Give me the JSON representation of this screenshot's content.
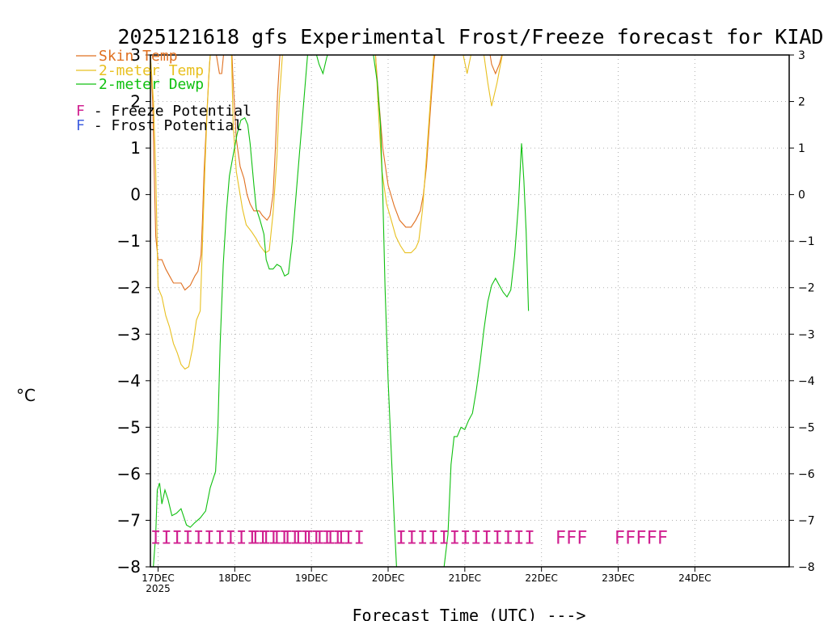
{
  "chart_data": {
    "type": "line",
    "title": "2025121618 gfs Experimental Frost/Freeze forecast for KIAD",
    "xlabel": "Forecast Time (UTC) --->",
    "ylabel": "°C",
    "ylim": [
      -8,
      3
    ],
    "xlim": [
      -0.1,
      8.23
    ],
    "yticks_left": [
      "−8",
      "−7",
      "−6",
      "−5",
      "−4",
      "−3",
      "−2",
      "−1",
      "0",
      "1",
      "2",
      "3"
    ],
    "yticks_right": [
      "−8",
      "−7",
      "−6",
      "−5",
      "−4",
      "−3",
      "−2",
      "−1",
      "0",
      "1",
      "2",
      "3"
    ],
    "ytick_values": [
      -8,
      -7,
      -6,
      -5,
      -4,
      -3,
      -2,
      -1,
      0,
      1,
      2,
      3
    ],
    "xticks": [
      {
        "label": "17DEC",
        "sub": "2025",
        "day": 0
      },
      {
        "label": "18DEC",
        "sub": "",
        "day": 1
      },
      {
        "label": "19DEC",
        "sub": "",
        "day": 2
      },
      {
        "label": "20DEC",
        "sub": "",
        "day": 3
      },
      {
        "label": "21DEC",
        "sub": "",
        "day": 4
      },
      {
        "label": "22DEC",
        "sub": "",
        "day": 5
      },
      {
        "label": "23DEC",
        "sub": "",
        "day": 6
      },
      {
        "label": "24DEC",
        "sub": "",
        "day": 7
      }
    ],
    "grid": true,
    "legend": {
      "position": "top-left",
      "entries": [
        {
          "label": "Skin Temp",
          "color": "#e07020"
        },
        {
          "label": "2-meter Temp",
          "color": "#e8c020"
        },
        {
          "label": "2-meter Dewp",
          "color": "#10c010"
        }
      ],
      "notes": [
        {
          "letter": "F",
          "text": " - Freeze Potential",
          "color": "#d02090"
        },
        {
          "letter": "F",
          "text": " - Frost Potential",
          "color": "#4060e0"
        }
      ]
    },
    "series": [
      {
        "name": "Skin Temp",
        "color": "#e07020",
        "points": [
          [
            -0.1,
            3.0
          ],
          [
            -0.07,
            2.0
          ],
          [
            -0.05,
            0.5
          ],
          [
            -0.03,
            -0.9
          ],
          [
            0.0,
            -1.4
          ],
          [
            0.05,
            -1.4
          ],
          [
            0.1,
            -1.6
          ],
          [
            0.15,
            -1.75
          ],
          [
            0.2,
            -1.9
          ],
          [
            0.3,
            -1.9
          ],
          [
            0.35,
            -2.05
          ],
          [
            0.42,
            -1.95
          ],
          [
            0.48,
            -1.75
          ],
          [
            0.52,
            -1.65
          ],
          [
            0.56,
            -1.3
          ],
          [
            0.58,
            -0.5
          ],
          [
            0.6,
            0.5
          ],
          [
            0.63,
            1.5
          ],
          [
            0.66,
            2.5
          ],
          [
            0.68,
            3.0
          ],
          [
            0.72,
            3.2
          ],
          [
            0.76,
            3.0
          ],
          [
            0.8,
            2.6
          ],
          [
            0.83,
            2.6
          ],
          [
            0.86,
            3.1
          ],
          [
            0.9,
            3.5
          ],
          [
            0.95,
            3.5
          ],
          [
            0.98,
            2.4
          ],
          [
            1.02,
            1.2
          ],
          [
            1.07,
            0.6
          ],
          [
            1.12,
            0.35
          ],
          [
            1.16,
            0.0
          ],
          [
            1.2,
            -0.2
          ],
          [
            1.25,
            -0.35
          ],
          [
            1.32,
            -0.35
          ],
          [
            1.36,
            -0.45
          ],
          [
            1.42,
            -0.55
          ],
          [
            1.46,
            -0.45
          ],
          [
            1.5,
            0.0
          ],
          [
            1.53,
            1.0
          ],
          [
            1.56,
            2.2
          ],
          [
            1.6,
            3.3
          ],
          [
            1.68,
            3.5
          ],
          [
            2.7,
            3.5
          ],
          [
            2.83,
            3.1
          ],
          [
            2.88,
            2.0
          ],
          [
            2.93,
            1.0
          ],
          [
            3.0,
            0.2
          ],
          [
            3.08,
            -0.25
          ],
          [
            3.15,
            -0.55
          ],
          [
            3.23,
            -0.7
          ],
          [
            3.3,
            -0.7
          ],
          [
            3.36,
            -0.55
          ],
          [
            3.42,
            -0.35
          ],
          [
            3.46,
            0.0
          ],
          [
            3.5,
            0.6
          ],
          [
            3.55,
            1.8
          ],
          [
            3.6,
            2.9
          ],
          [
            3.66,
            3.5
          ],
          [
            3.9,
            3.5
          ],
          [
            4.0,
            3.3
          ],
          [
            4.1,
            3.1
          ],
          [
            4.18,
            3.3
          ],
          [
            4.3,
            3.3
          ],
          [
            4.35,
            2.8
          ],
          [
            4.4,
            2.6
          ],
          [
            4.45,
            2.8
          ],
          [
            4.5,
            3.1
          ],
          [
            4.55,
            3.3
          ]
        ]
      },
      {
        "name": "2-meter Temp",
        "color": "#e8c020",
        "points": [
          [
            -0.1,
            3.0
          ],
          [
            -0.06,
            2.0
          ],
          [
            -0.03,
            0.5
          ],
          [
            0.0,
            -2.0
          ],
          [
            0.05,
            -2.2
          ],
          [
            0.1,
            -2.6
          ],
          [
            0.15,
            -2.85
          ],
          [
            0.2,
            -3.2
          ],
          [
            0.25,
            -3.4
          ],
          [
            0.3,
            -3.65
          ],
          [
            0.35,
            -3.75
          ],
          [
            0.4,
            -3.7
          ],
          [
            0.45,
            -3.3
          ],
          [
            0.5,
            -2.7
          ],
          [
            0.55,
            -2.5
          ],
          [
            0.58,
            -1.0
          ],
          [
            0.61,
            0.5
          ],
          [
            0.64,
            1.8
          ],
          [
            0.67,
            2.8
          ],
          [
            0.7,
            3.3
          ],
          [
            0.75,
            3.5
          ],
          [
            0.95,
            3.5
          ],
          [
            0.98,
            1.5
          ],
          [
            1.02,
            0.5
          ],
          [
            1.06,
            0.1
          ],
          [
            1.1,
            -0.3
          ],
          [
            1.15,
            -0.65
          ],
          [
            1.22,
            -0.8
          ],
          [
            1.28,
            -0.95
          ],
          [
            1.33,
            -1.1
          ],
          [
            1.4,
            -1.25
          ],
          [
            1.45,
            -1.2
          ],
          [
            1.5,
            -0.4
          ],
          [
            1.55,
            0.8
          ],
          [
            1.58,
            2.0
          ],
          [
            1.63,
            3.2
          ],
          [
            1.7,
            3.5
          ],
          [
            2.7,
            3.5
          ],
          [
            2.83,
            3.2
          ],
          [
            2.88,
            1.6
          ],
          [
            2.92,
            0.5
          ],
          [
            2.98,
            -0.2
          ],
          [
            3.05,
            -0.6
          ],
          [
            3.1,
            -0.9
          ],
          [
            3.16,
            -1.1
          ],
          [
            3.22,
            -1.25
          ],
          [
            3.3,
            -1.25
          ],
          [
            3.36,
            -1.15
          ],
          [
            3.4,
            -1.0
          ],
          [
            3.45,
            -0.3
          ],
          [
            3.5,
            0.8
          ],
          [
            3.55,
            2.0
          ],
          [
            3.6,
            3.1
          ],
          [
            3.66,
            3.5
          ],
          [
            3.9,
            3.5
          ],
          [
            3.98,
            3.0
          ],
          [
            4.03,
            2.6
          ],
          [
            4.08,
            3.0
          ],
          [
            4.15,
            3.3
          ],
          [
            4.25,
            3.0
          ],
          [
            4.3,
            2.4
          ],
          [
            4.35,
            1.9
          ],
          [
            4.42,
            2.4
          ],
          [
            4.5,
            3.1
          ],
          [
            4.55,
            3.3
          ]
        ]
      },
      {
        "name": "2-meter Dewp",
        "color": "#10c010",
        "points": [
          [
            -0.07,
            -8.2
          ],
          [
            -0.03,
            -7.3
          ],
          [
            -0.01,
            -6.35
          ],
          [
            0.02,
            -6.2
          ],
          [
            0.05,
            -6.65
          ],
          [
            0.09,
            -6.35
          ],
          [
            0.13,
            -6.55
          ],
          [
            0.18,
            -6.9
          ],
          [
            0.24,
            -6.85
          ],
          [
            0.3,
            -6.75
          ],
          [
            0.37,
            -7.1
          ],
          [
            0.42,
            -7.15
          ],
          [
            0.48,
            -7.05
          ],
          [
            0.55,
            -6.95
          ],
          [
            0.62,
            -6.8
          ],
          [
            0.68,
            -6.3
          ],
          [
            0.75,
            -5.95
          ],
          [
            0.78,
            -5.0
          ],
          [
            0.81,
            -3.2
          ],
          [
            0.85,
            -1.5
          ],
          [
            0.89,
            -0.4
          ],
          [
            0.93,
            0.4
          ],
          [
            0.98,
            0.85
          ],
          [
            1.03,
            1.3
          ],
          [
            1.08,
            1.6
          ],
          [
            1.13,
            1.65
          ],
          [
            1.17,
            1.5
          ],
          [
            1.2,
            1.1
          ],
          [
            1.25,
            0.2
          ],
          [
            1.28,
            -0.3
          ],
          [
            1.33,
            -0.55
          ],
          [
            1.38,
            -0.85
          ],
          [
            1.41,
            -1.4
          ],
          [
            1.45,
            -1.6
          ],
          [
            1.5,
            -1.6
          ],
          [
            1.55,
            -1.5
          ],
          [
            1.6,
            -1.55
          ],
          [
            1.65,
            -1.75
          ],
          [
            1.7,
            -1.7
          ],
          [
            1.75,
            -1.0
          ],
          [
            1.8,
            0.0
          ],
          [
            1.85,
            1.0
          ],
          [
            1.9,
            2.0
          ],
          [
            1.95,
            3.0
          ],
          [
            2.0,
            3.3
          ],
          [
            2.05,
            3.1
          ],
          [
            2.1,
            2.8
          ],
          [
            2.15,
            2.6
          ],
          [
            2.2,
            2.95
          ],
          [
            2.25,
            3.2
          ],
          [
            2.4,
            3.4
          ],
          [
            2.7,
            3.4
          ],
          [
            2.8,
            3.1
          ],
          [
            2.86,
            2.4
          ],
          [
            2.9,
            1.5
          ],
          [
            2.93,
            0.0
          ],
          [
            2.96,
            -2.0
          ],
          [
            3.0,
            -4.0
          ],
          [
            3.04,
            -5.5
          ],
          [
            3.08,
            -7.0
          ],
          [
            3.11,
            -8.0
          ],
          [
            3.12,
            -8.2
          ],
          [
            3.72,
            -8.2
          ],
          [
            3.73,
            -8.0
          ],
          [
            3.78,
            -7.3
          ],
          [
            3.82,
            -5.8
          ],
          [
            3.86,
            -5.2
          ],
          [
            3.9,
            -5.2
          ],
          [
            3.95,
            -5.0
          ],
          [
            4.0,
            -5.05
          ],
          [
            4.05,
            -4.85
          ],
          [
            4.1,
            -4.7
          ],
          [
            4.15,
            -4.2
          ],
          [
            4.2,
            -3.6
          ],
          [
            4.25,
            -2.9
          ],
          [
            4.3,
            -2.3
          ],
          [
            4.35,
            -1.95
          ],
          [
            4.4,
            -1.8
          ],
          [
            4.45,
            -1.95
          ],
          [
            4.5,
            -2.1
          ],
          [
            4.55,
            -2.2
          ],
          [
            4.6,
            -2.05
          ],
          [
            4.65,
            -1.3
          ],
          [
            4.7,
            -0.2
          ],
          [
            4.74,
            1.1
          ],
          [
            4.77,
            0.3
          ],
          [
            4.8,
            -0.8
          ],
          [
            4.83,
            -2.5
          ]
        ]
      }
    ],
    "freeze_marks": [
      {
        "text": "IIIIIIIIIIIIIIIIIIII",
        "day": -0.1,
        "color": "#d02090"
      },
      {
        "text": "IIIIIIIII",
        "day": 1.2,
        "color": "#d02090"
      },
      {
        "text": "IIIIIIIIIIIII",
        "day": 3.1,
        "color": "#d02090"
      },
      {
        "text": "FFF",
        "day": 5.18,
        "color": "#d02090"
      },
      {
        "text": "FFFFF",
        "day": 5.95,
        "color": "#d02090"
      }
    ]
  }
}
